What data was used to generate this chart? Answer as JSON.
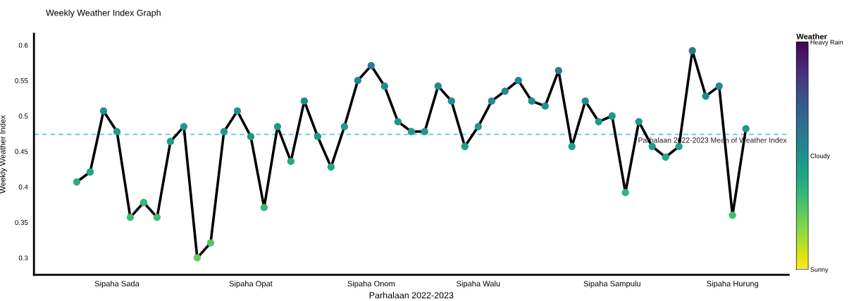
{
  "chart_data": {
    "type": "line",
    "title": "Weekly Weather Index Graph",
    "xlabel": "Parhalaan 2022-2023",
    "ylabel": "Weekly Weather Index",
    "clabel": "Weather",
    "categories": [
      null,
      null,
      null,
      "Sipaha Sada",
      null,
      null,
      null,
      null,
      null,
      null,
      null,
      null,
      null,
      "Sipaha Opat",
      null,
      null,
      null,
      null,
      null,
      null,
      null,
      null,
      "Sipaha Onom",
      null,
      null,
      null,
      null,
      null,
      null,
      null,
      "Sipaha Walu",
      null,
      null,
      null,
      null,
      null,
      null,
      null,
      null,
      null,
      "Sipaha Sampulu",
      null,
      null,
      null,
      null,
      null,
      null,
      null,
      null,
      "Sipaha Hurung",
      null
    ],
    "series": [
      {
        "color": "#000000",
        "marker": "circle",
        "line_style": "solid",
        "values": [
          0.407,
          0.421,
          0.507,
          0.478,
          0.357,
          0.378,
          0.357,
          0.464,
          0.485,
          0.3,
          0.321,
          0.478,
          0.507,
          0.471,
          0.371,
          0.485,
          0.436,
          0.521,
          0.471,
          0.428,
          0.485,
          0.55,
          0.571,
          0.542,
          0.492,
          0.478,
          0.478,
          0.542,
          0.521,
          0.457,
          0.485,
          0.521,
          0.535,
          0.55,
          0.521,
          0.514,
          0.564,
          0.457,
          0.521,
          0.492,
          0.5,
          0.392,
          0.492,
          0.457,
          0.442,
          0.457,
          0.592,
          0.528,
          0.542,
          0.36,
          0.482
        ],
        "colors": [
          "#27ad81",
          "#22a785",
          "#21918c",
          "#1f9a8a",
          "#40bd72",
          "#38b977",
          "#40bd72",
          "#1f9e89",
          "#1f988b",
          "#5ec962",
          "#4ec36b",
          "#1f9a8a",
          "#21918c",
          "#1f9a8a",
          "#38b977",
          "#1f988b",
          "#22a785",
          "#23898e",
          "#1f9a8a",
          "#22a785",
          "#1f988b",
          "#25848e",
          "#287c8e",
          "#23898e",
          "#1f988b",
          "#1f9a8a",
          "#1f9a8a",
          "#23898e",
          "#23898e",
          "#1f9e89",
          "#1f988b",
          "#23898e",
          "#23898e",
          "#25848e",
          "#23898e",
          "#21918c",
          "#287c8e",
          "#1f9e89",
          "#23898e",
          "#1f988b",
          "#1f988b",
          "#2fb47c",
          "#1f988b",
          "#1f9e89",
          "#22a785",
          "#1f9e89",
          "#2a788e",
          "#23898e",
          "#23898e",
          "#40bd72",
          "#1f988b"
        ]
      }
    ],
    "ylim": [
      0.276,
      0.616
    ],
    "yticks": [
      0.3,
      0.35,
      0.4,
      0.45,
      0.5,
      0.55,
      0.6
    ],
    "clim": [
      0,
      1
    ],
    "cticks": [
      {
        "value": 0,
        "label": "Sunny"
      },
      {
        "value": 0.5,
        "label": "Cloudy"
      },
      {
        "value": 1,
        "label": "Heavy Rain"
      }
    ],
    "ref_lines": [
      {
        "axis": "y",
        "value": 0.474,
        "label": "Parhalaan 2022-2023 Mean of Weather Index",
        "color": "#5bc8ea",
        "line_style": "dashed"
      }
    ],
    "grid": false,
    "legend": false
  }
}
